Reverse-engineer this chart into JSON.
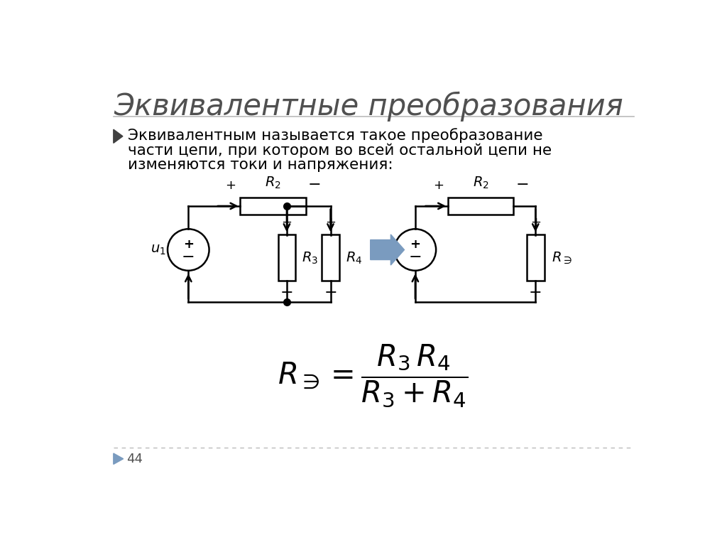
{
  "title": "Эквивалентные преобразования",
  "bullet_line1": "Эквивалентным называется такое преобразование",
  "bullet_line2": "части цепи, при котором во всей остальной цепи не",
  "bullet_line3": "изменяются токи и напряжения:",
  "page_number": "44",
  "bg_color": "#ffffff",
  "title_color": "#505050",
  "text_color": "#000000",
  "arrow_fill": "#7a9bbf",
  "line_color": "#000000",
  "sep_color": "#bbbbbb"
}
